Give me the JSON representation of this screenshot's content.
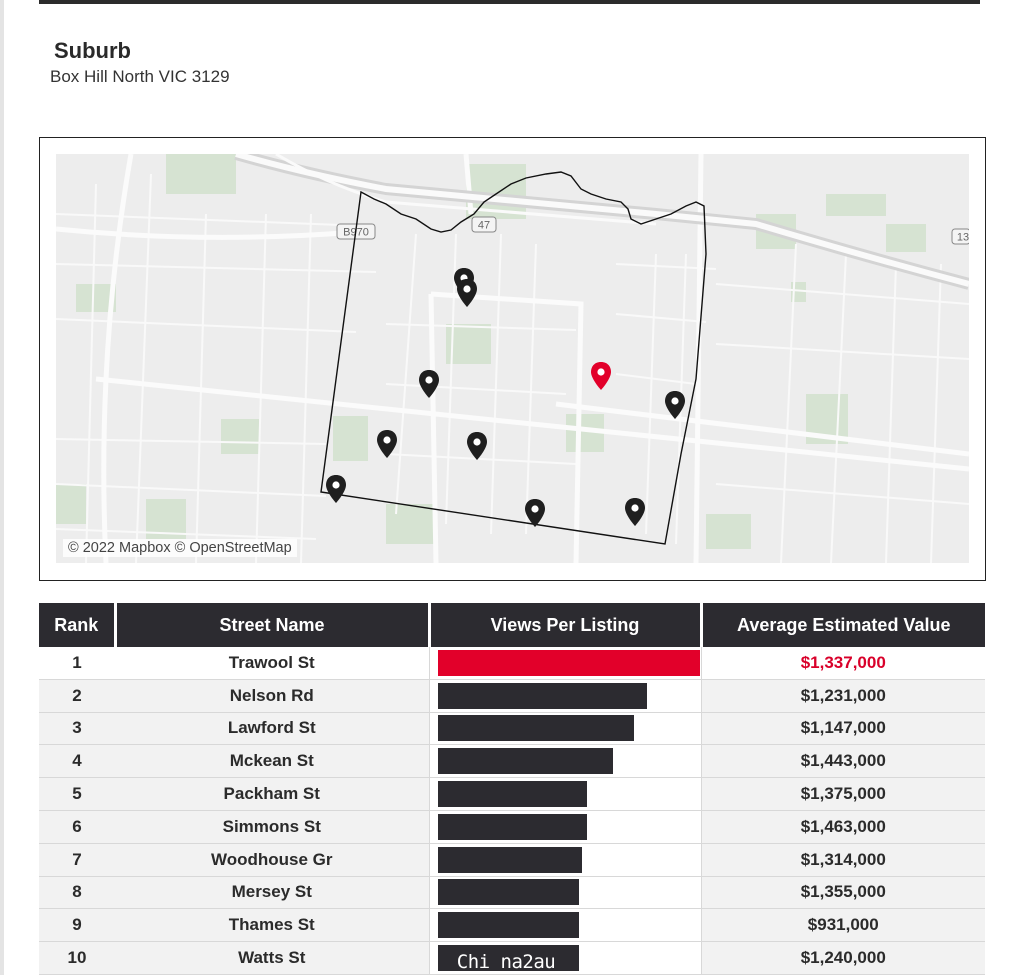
{
  "section_title": "Suburb",
  "suburb": "Box Hill North VIC 3129",
  "map": {
    "attribution": "© 2022 Mapbox © OpenStreetMap",
    "road_labels": [
      "B970",
      "47",
      "13"
    ],
    "accent_color": "#e2002a",
    "marker_color": "#1f1f1f",
    "markers": 10
  },
  "table": {
    "headers": [
      "Rank",
      "Street Name",
      "Views Per Listing",
      "Average Estimated Value"
    ],
    "rows": [
      {
        "rank": "1",
        "street": "Trawool St",
        "views": 1.0,
        "value": "$1,337,000"
      },
      {
        "rank": "2",
        "street": "Nelson Rd",
        "views": 0.8,
        "value": "$1,231,000"
      },
      {
        "rank": "3",
        "street": "Lawford St",
        "views": 0.75,
        "value": "$1,147,000"
      },
      {
        "rank": "4",
        "street": "Mckean St",
        "views": 0.67,
        "value": "$1,443,000"
      },
      {
        "rank": "5",
        "street": "Packham St",
        "views": 0.57,
        "value": "$1,375,000"
      },
      {
        "rank": "6",
        "street": "Simmons St",
        "views": 0.57,
        "value": "$1,463,000"
      },
      {
        "rank": "7",
        "street": "Woodhouse Gr",
        "views": 0.55,
        "value": "$1,314,000"
      },
      {
        "rank": "8",
        "street": "Mersey St",
        "views": 0.54,
        "value": "$1,355,000"
      },
      {
        "rank": "9",
        "street": "Thames St",
        "views": 0.54,
        "value": "$931,000"
      },
      {
        "rank": "10",
        "street": "Watts St",
        "views": 0.54,
        "value": "$1,240,000"
      }
    ]
  },
  "watermark": "Chi na2au"
}
